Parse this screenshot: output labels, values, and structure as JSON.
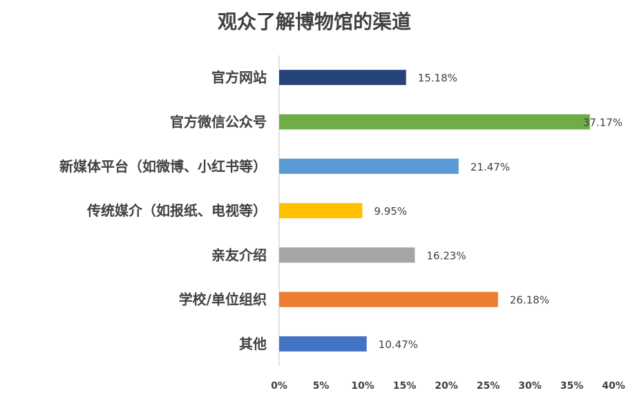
{
  "chart_data": {
    "type": "bar",
    "orientation": "horizontal",
    "title": "观众了解博物馆的渠道",
    "xlabel": "",
    "ylabel": "",
    "categories": [
      "官方网站",
      "官方微信公众号",
      "新媒体平台（如微博、小红书等）",
      "传统媒介（如报纸、电视等）",
      "亲友介绍",
      "学校/单位组织",
      "其他"
    ],
    "values": [
      15.18,
      37.17,
      21.47,
      9.95,
      16.23,
      26.18,
      10.47
    ],
    "value_labels": [
      "15.18%",
      "37.17%",
      "21.47%",
      "9.95%",
      "16.23%",
      "26.18%",
      "10.47%"
    ],
    "bar_colors": [
      "#264478",
      "#70AD47",
      "#5B9BD5",
      "#FFC000",
      "#A5A5A5",
      "#ED7D31",
      "#4472C4"
    ],
    "xlim": [
      0,
      40
    ],
    "x_ticks": [
      "0%",
      "5%",
      "10%",
      "15%",
      "20%",
      "25%",
      "30%",
      "35%",
      "40%"
    ],
    "grid": false,
    "legend": "none"
  }
}
